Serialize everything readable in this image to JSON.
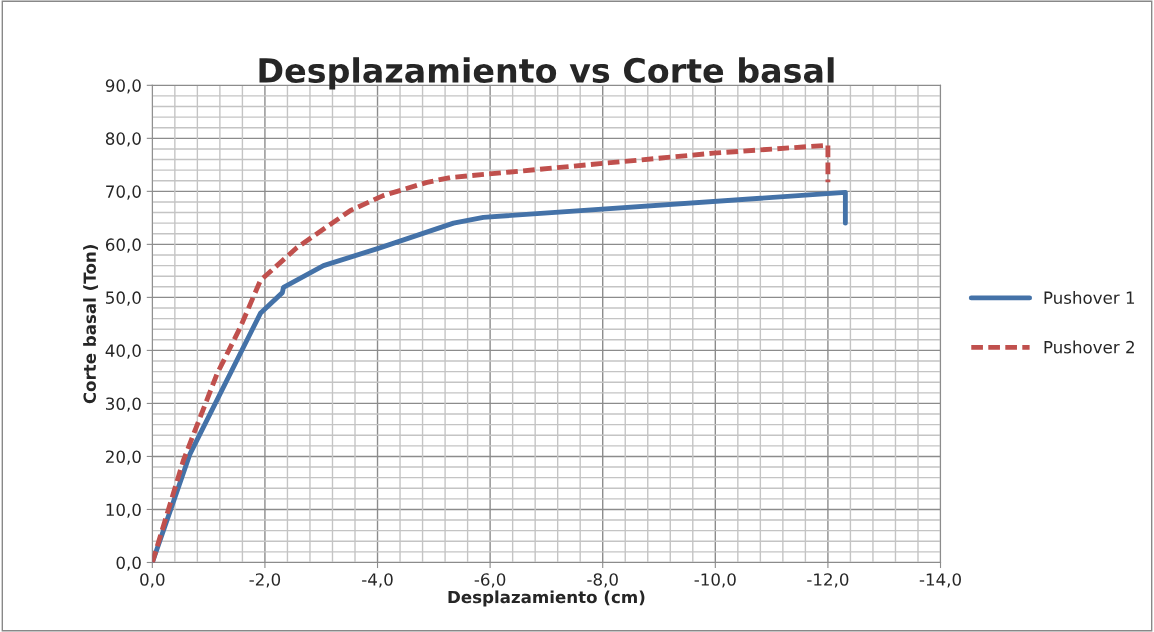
{
  "chart_data": {
    "type": "line",
    "title": "Desplazamiento vs Corte basal",
    "xlabel": "Desplazamiento (cm)",
    "ylabel": "Corte basal (Ton)",
    "xlim": [
      0,
      -14
    ],
    "xticks": [
      {
        "value": 0,
        "label": "0,0"
      },
      {
        "value": -2,
        "label": "-2,0"
      },
      {
        "value": -4,
        "label": "-4,0"
      },
      {
        "value": -6,
        "label": "-6,0"
      },
      {
        "value": -8,
        "label": "-8,0"
      },
      {
        "value": -10,
        "label": "-10,0"
      },
      {
        "value": -12,
        "label": "-12,0"
      },
      {
        "value": -14,
        "label": "-14,0"
      }
    ],
    "ylim": [
      0,
      90
    ],
    "yticks": [
      {
        "value": 0,
        "label": "0,0"
      },
      {
        "value": 10,
        "label": "10,0"
      },
      {
        "value": 20,
        "label": "20,0"
      },
      {
        "value": 30,
        "label": "30,0"
      },
      {
        "value": 40,
        "label": "40,0"
      },
      {
        "value": 50,
        "label": "50,0"
      },
      {
        "value": 60,
        "label": "60,0"
      },
      {
        "value": 70,
        "label": "70,0"
      },
      {
        "value": 80,
        "label": "80,0"
      },
      {
        "value": 90,
        "label": "90,0"
      }
    ],
    "grid": true,
    "legend": "right",
    "series": [
      {
        "name": "Pushover 1",
        "color": "#4472a8",
        "line_style": "solid",
        "x": [
          0,
          -0.67,
          -1.92,
          -2.31,
          -2.33,
          -3.04,
          -4.0,
          -5.35,
          -5.88,
          -12.31,
          -12.31
        ],
        "values": [
          0,
          20.5,
          47,
          50.9,
          51.9,
          56,
          59.2,
          64,
          65.1,
          69.8,
          64
        ]
      },
      {
        "name": "Pushover 2",
        "color": "#c0504d",
        "line_style": "dashed",
        "x": [
          0,
          -0.55,
          -1.15,
          -1.56,
          -1.92,
          -2.57,
          -3.52,
          -4.1,
          -4.88,
          -5.29,
          -9.96,
          -12.0,
          -12.0
        ],
        "values": [
          0,
          19.2,
          35.6,
          44.3,
          53.2,
          59.4,
          66.4,
          69.2,
          71.7,
          72.6,
          77.2,
          78.7,
          71.7
        ]
      }
    ]
  }
}
